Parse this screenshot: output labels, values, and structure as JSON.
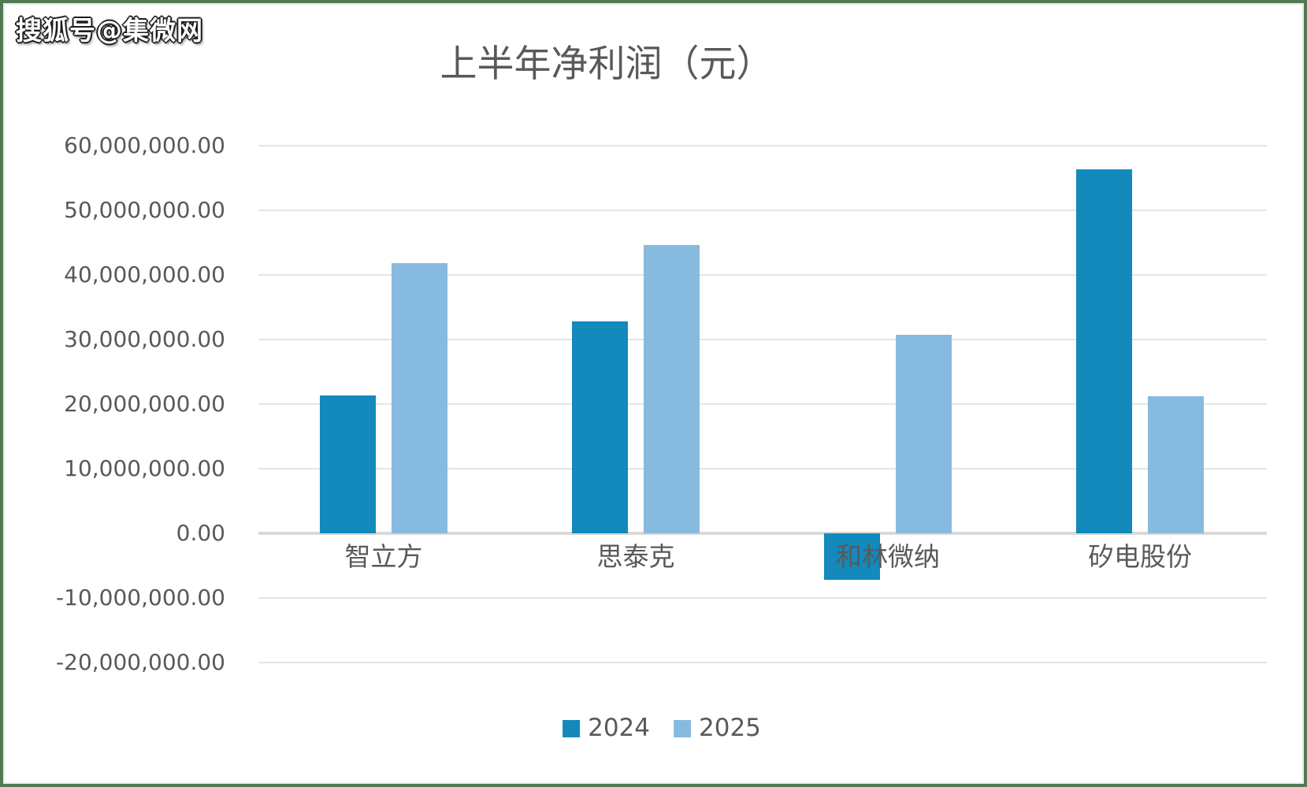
{
  "watermark": {
    "text": "搜狐号@集微网"
  },
  "frame": {
    "border_color": "#527b55",
    "background": "#ffffff"
  },
  "text_color": "#595959",
  "chart_data": {
    "type": "bar",
    "title": "上半年净利润（元）",
    "categories": [
      "智立方",
      "思泰克",
      "和林微纳",
      "矽电股份"
    ],
    "series": [
      {
        "name": "2024",
        "color": "#1389bc",
        "values": [
          21400000,
          32800000,
          -7200000,
          56300000
        ]
      },
      {
        "name": "2025",
        "color": "#87badf",
        "values": [
          41800000,
          44600000,
          30700000,
          21200000
        ]
      }
    ],
    "ylim": [
      -20000000,
      60000000
    ],
    "ytick_values": [
      60000000,
      50000000,
      40000000,
      30000000,
      20000000,
      10000000,
      0,
      -10000000,
      -20000000
    ],
    "ytick_labels": [
      "60,000,000.00",
      "50,000,000.00",
      "40,000,000.00",
      "30,000,000.00",
      "20,000,000.00",
      "10,000,000.00",
      "0.00",
      "-10,000,000.00",
      "-20,000,000.00"
    ],
    "grid": true,
    "gridline_color": "#e4e4e4",
    "zero_line_color": "#d9d9d9",
    "legend_position": "bottom",
    "xlabel": "",
    "ylabel": ""
  }
}
